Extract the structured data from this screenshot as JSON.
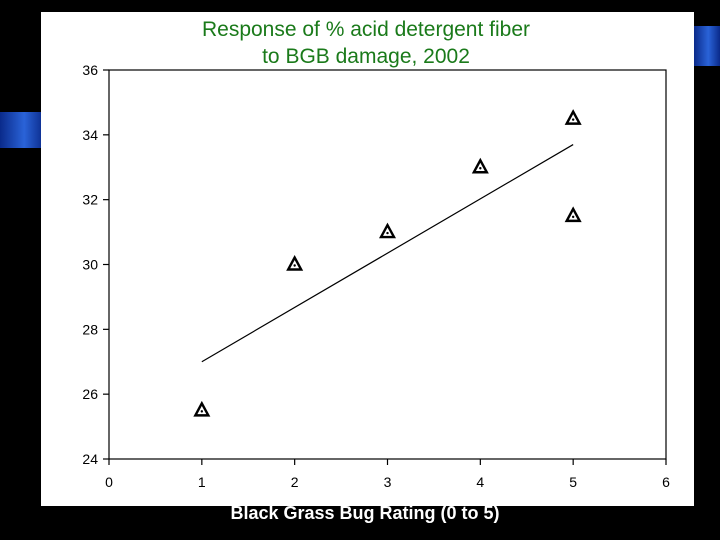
{
  "chart_data": {
    "type": "scatter",
    "title": [
      "Response of % acid detergent fiber",
      "to BGB damage, 2002"
    ],
    "xlabel": "Black Grass Bug Rating (0 to 5)",
    "ylabel": "",
    "xlim": [
      0,
      6
    ],
    "ylim": [
      24,
      36
    ],
    "xticks": [
      0,
      1,
      2,
      3,
      4,
      5,
      6
    ],
    "yticks": [
      24,
      26,
      28,
      30,
      32,
      34,
      36
    ],
    "grid": false,
    "series": [
      {
        "marker": "triangle",
        "points": [
          {
            "x": 1,
            "y": 25.5
          },
          {
            "x": 2,
            "y": 30.0
          },
          {
            "x": 3,
            "y": 31.0
          },
          {
            "x": 4,
            "y": 33.0
          },
          {
            "x": 5,
            "y": 34.5
          },
          {
            "x": 5,
            "y": 31.5
          }
        ]
      }
    ],
    "trendline": {
      "x": [
        1,
        5
      ],
      "y": [
        27.0,
        33.7
      ]
    }
  }
}
